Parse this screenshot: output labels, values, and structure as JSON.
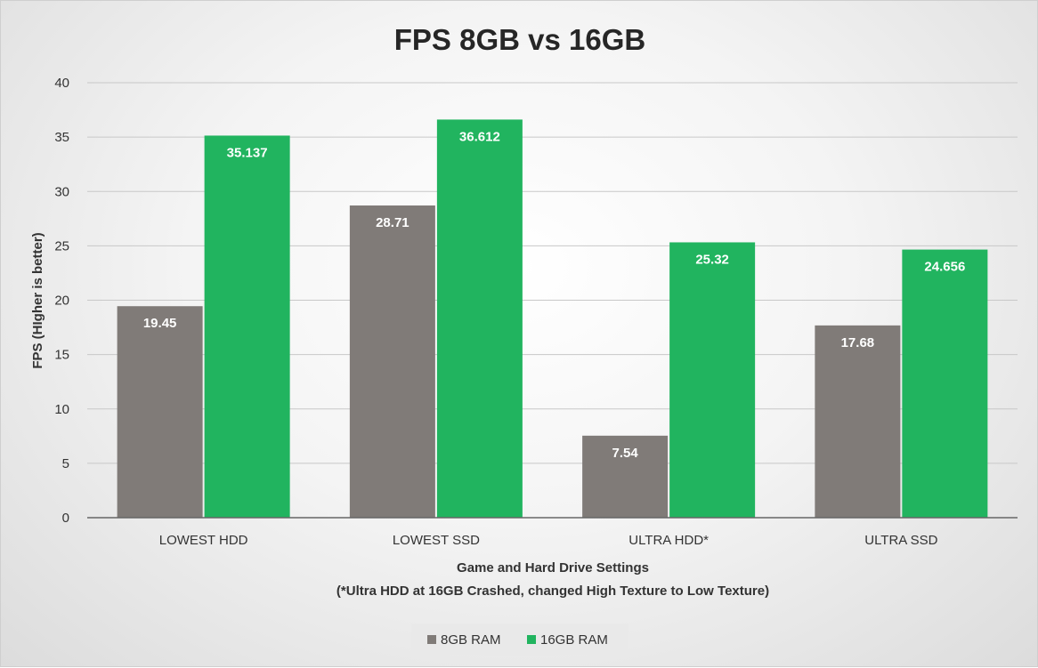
{
  "chart_data": {
    "type": "bar",
    "title": "FPS 8GB vs 16GB",
    "xlabel": "Game and Hard Drive Settings",
    "xlabel_note": "(*Ultra HDD at 16GB Crashed, changed High Texture to Low Texture)",
    "ylabel": "FPS (HIgher is better)",
    "ylim": [
      0,
      40
    ],
    "yticks": [
      0,
      5,
      10,
      15,
      20,
      25,
      30,
      35,
      40
    ],
    "categories": [
      "LOWEST HDD",
      "LOWEST SSD",
      "ULTRA HDD*",
      "ULTRA SSD"
    ],
    "series": [
      {
        "name": "8GB RAM",
        "color": "#807b78",
        "values": [
          19.45,
          28.71,
          7.54,
          17.68
        ],
        "labels": [
          "19.45",
          "28.71",
          "7.54",
          "17.68"
        ]
      },
      {
        "name": "16GB RAM",
        "color": "#21b45f",
        "values": [
          35.137,
          36.612,
          25.32,
          24.656
        ],
        "labels": [
          "35.137",
          "36.612",
          "25.32",
          "24.656"
        ]
      }
    ],
    "grid": true,
    "legend": "bottom"
  }
}
